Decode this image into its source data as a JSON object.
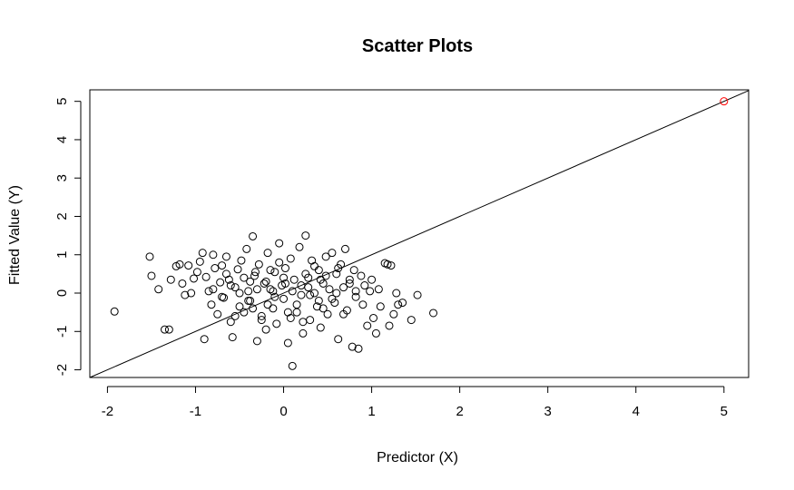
{
  "chart_data": {
    "type": "scatter",
    "title": "Scatter Plots",
    "xlabel": "Predictor (X)",
    "ylabel": "Fitted Value (Y)",
    "xlim": [
      -2.2,
      5.28
    ],
    "ylim": [
      -2.2,
      5.3
    ],
    "xticks": [
      -2,
      -1,
      0,
      1,
      2,
      3,
      4,
      5
    ],
    "yticks": [
      -2,
      -1,
      0,
      1,
      2,
      3,
      4,
      5
    ],
    "grid": false,
    "colors": {
      "points": "#000000",
      "highlight": "#ff0000",
      "line": "#000000"
    },
    "reference_line": {
      "slope": 1,
      "intercept": 0
    },
    "highlight_point": {
      "x": 5,
      "y": 5
    },
    "series": [
      {
        "points": [
          [
            -1.92,
            -0.48
          ],
          [
            -1.52,
            0.95
          ],
          [
            -1.5,
            0.45
          ],
          [
            -1.42,
            0.1
          ],
          [
            -1.35,
            -0.95
          ],
          [
            -1.3,
            -0.95
          ],
          [
            -1.28,
            0.35
          ],
          [
            -1.22,
            0.7
          ],
          [
            -1.18,
            0.75
          ],
          [
            -1.15,
            0.25
          ],
          [
            -1.12,
            -0.05
          ],
          [
            -1.08,
            0.72
          ],
          [
            -1.05,
            0.0
          ],
          [
            -1.02,
            0.38
          ],
          [
            -0.98,
            0.55
          ],
          [
            -0.95,
            0.82
          ],
          [
            -0.92,
            1.05
          ],
          [
            -0.9,
            -1.2
          ],
          [
            -0.88,
            0.42
          ],
          [
            -0.85,
            0.05
          ],
          [
            -0.82,
            -0.3
          ],
          [
            -0.8,
            1.0
          ],
          [
            -0.78,
            0.65
          ],
          [
            -0.75,
            -0.55
          ],
          [
            -0.72,
            0.28
          ],
          [
            -0.7,
            0.72
          ],
          [
            -0.68,
            -0.12
          ],
          [
            -0.65,
            0.95
          ],
          [
            -0.62,
            0.35
          ],
          [
            -0.6,
            -0.75
          ],
          [
            -0.58,
            -1.15
          ],
          [
            -0.55,
            0.15
          ],
          [
            -0.52,
            0.62
          ],
          [
            -0.5,
            -0.35
          ],
          [
            -0.48,
            0.85
          ],
          [
            -0.45,
            -0.5
          ],
          [
            -0.42,
            1.15
          ],
          [
            -0.4,
            0.05
          ],
          [
            -0.38,
            -0.2
          ],
          [
            -0.35,
            1.48
          ],
          [
            -0.33,
            0.45
          ],
          [
            -0.3,
            -1.25
          ],
          [
            -0.28,
            0.75
          ],
          [
            -0.25,
            -0.6
          ],
          [
            -0.22,
            0.25
          ],
          [
            -0.2,
            -0.95
          ],
          [
            -0.18,
            1.05
          ],
          [
            -0.15,
            0.1
          ],
          [
            -0.12,
            -0.4
          ],
          [
            -0.1,
            0.55
          ],
          [
            -0.08,
            -0.8
          ],
          [
            -0.05,
            1.3
          ],
          [
            -0.02,
            0.2
          ],
          [
            0.0,
            -0.15
          ],
          [
            0.02,
            0.65
          ],
          [
            0.05,
            -1.3
          ],
          [
            0.08,
            0.9
          ],
          [
            0.1,
            -1.9
          ],
          [
            0.12,
            0.35
          ],
          [
            0.15,
            -0.5
          ],
          [
            0.18,
            1.2
          ],
          [
            0.2,
            -0.05
          ],
          [
            0.22,
            -1.05
          ],
          [
            0.25,
            1.5
          ],
          [
            0.28,
            0.4
          ],
          [
            0.3,
            -0.7
          ],
          [
            0.32,
            0.85
          ],
          [
            0.35,
            0.0
          ],
          [
            0.38,
            -0.35
          ],
          [
            0.4,
            0.6
          ],
          [
            0.42,
            -0.9
          ],
          [
            0.45,
            0.25
          ],
          [
            0.48,
            0.95
          ],
          [
            0.5,
            -0.55
          ],
          [
            0.52,
            0.1
          ],
          [
            0.55,
            1.05
          ],
          [
            0.58,
            -0.25
          ],
          [
            0.6,
            0.5
          ],
          [
            0.62,
            -1.2
          ],
          [
            0.65,
            0.75
          ],
          [
            0.68,
            0.15
          ],
          [
            0.7,
            1.15
          ],
          [
            0.72,
            -0.45
          ],
          [
            0.75,
            0.35
          ],
          [
            0.78,
            -1.4
          ],
          [
            0.8,
            0.6
          ],
          [
            0.82,
            -0.1
          ],
          [
            0.85,
            -1.45
          ],
          [
            0.88,
            0.45
          ],
          [
            0.9,
            -0.3
          ],
          [
            0.92,
            0.2
          ],
          [
            0.95,
            -0.85
          ],
          [
            0.98,
            0.05
          ],
          [
            1.0,
            0.35
          ],
          [
            1.02,
            -0.65
          ],
          [
            1.05,
            -1.05
          ],
          [
            1.08,
            0.1
          ],
          [
            1.1,
            -0.35
          ],
          [
            1.15,
            0.78
          ],
          [
            1.18,
            0.75
          ],
          [
            1.2,
            -0.85
          ],
          [
            1.22,
            0.72
          ],
          [
            1.25,
            -0.55
          ],
          [
            1.28,
            0.0
          ],
          [
            1.3,
            -0.3
          ],
          [
            1.35,
            -0.25
          ],
          [
            1.45,
            -0.7
          ],
          [
            1.52,
            -0.05
          ],
          [
            1.7,
            -0.52
          ],
          [
            -0.5,
            0.0
          ],
          [
            -0.3,
            0.1
          ],
          [
            -0.1,
            -0.1
          ],
          [
            0.1,
            0.05
          ],
          [
            0.3,
            -0.05
          ],
          [
            -0.4,
            -0.2
          ],
          [
            -0.2,
            0.3
          ],
          [
            0.0,
            0.4
          ],
          [
            0.2,
            0.2
          ],
          [
            0.4,
            -0.2
          ],
          [
            0.6,
            0.0
          ],
          [
            -0.6,
            0.2
          ],
          [
            -0.35,
            -0.4
          ],
          [
            -0.15,
            0.6
          ],
          [
            0.05,
            -0.5
          ],
          [
            0.25,
            0.5
          ],
          [
            0.45,
            -0.4
          ],
          [
            -0.7,
            -0.1
          ],
          [
            -0.45,
            0.4
          ],
          [
            -0.25,
            -0.7
          ],
          [
            -0.05,
            0.8
          ],
          [
            0.15,
            -0.3
          ],
          [
            0.35,
            0.7
          ],
          [
            0.55,
            -0.15
          ],
          [
            0.75,
            0.25
          ],
          [
            -0.8,
            0.1
          ],
          [
            -0.55,
            -0.6
          ],
          [
            -0.32,
            0.55
          ],
          [
            -0.12,
            0.05
          ],
          [
            0.08,
            -0.65
          ],
          [
            0.28,
            0.15
          ],
          [
            0.48,
            0.45
          ],
          [
            0.68,
            -0.55
          ],
          [
            -0.65,
            0.5
          ],
          [
            -0.38,
            0.3
          ],
          [
            -0.18,
            -0.3
          ],
          [
            0.02,
            0.25
          ],
          [
            0.22,
            -0.75
          ],
          [
            0.42,
            0.35
          ],
          [
            0.62,
            0.65
          ],
          [
            0.82,
            0.05
          ]
        ]
      }
    ]
  }
}
